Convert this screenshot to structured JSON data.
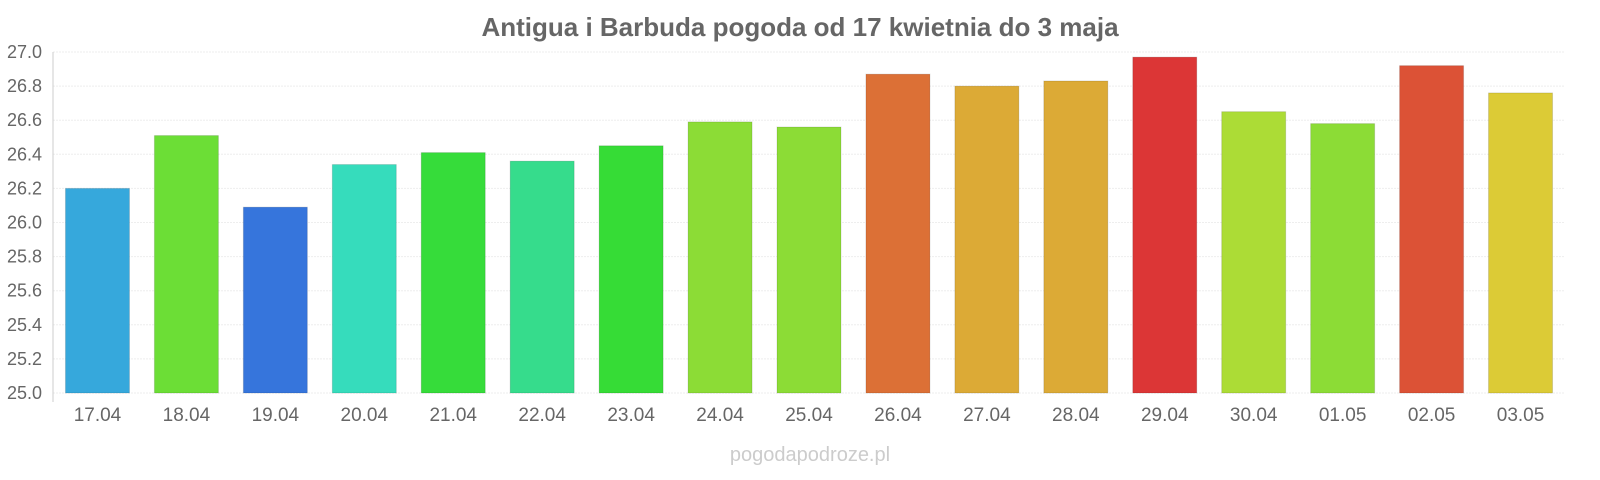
{
  "chart_data": {
    "type": "bar",
    "title": "Antigua i Barbuda pogoda od 17 kwietnia do 3 maja",
    "xlabel": "",
    "ylabel": "",
    "ylim": [
      25.0,
      27.0
    ],
    "yticks": [
      "25.0",
      "25.2",
      "25.4",
      "25.6",
      "25.8",
      "26.0",
      "26.2",
      "26.4",
      "26.6",
      "26.8",
      "27.0"
    ],
    "categories": [
      "17.04",
      "18.04",
      "19.04",
      "20.04",
      "21.04",
      "22.04",
      "23.04",
      "24.04",
      "25.04",
      "26.04",
      "27.04",
      "28.04",
      "29.04",
      "30.04",
      "01.05",
      "02.05",
      "03.05"
    ],
    "values": [
      26.2,
      26.51,
      26.09,
      26.34,
      26.41,
      26.36,
      26.45,
      26.59,
      26.56,
      26.87,
      26.8,
      26.83,
      26.97,
      26.65,
      26.58,
      26.92,
      26.76
    ],
    "colors": [
      "#36a8dc",
      "#6cde36",
      "#3675dc",
      "#36dcbc",
      "#36dc3a",
      "#36dc8c",
      "#36dc36",
      "#8cdc36",
      "#8cdc36",
      "#dc7036",
      "#dcaa36",
      "#dcaa36",
      "#dc3636",
      "#acdc36",
      "#8cdc36",
      "#dc5236",
      "#dccb36"
    ],
    "grid": true,
    "legend": "none"
  },
  "watermark": "pogodapodroze.pl"
}
